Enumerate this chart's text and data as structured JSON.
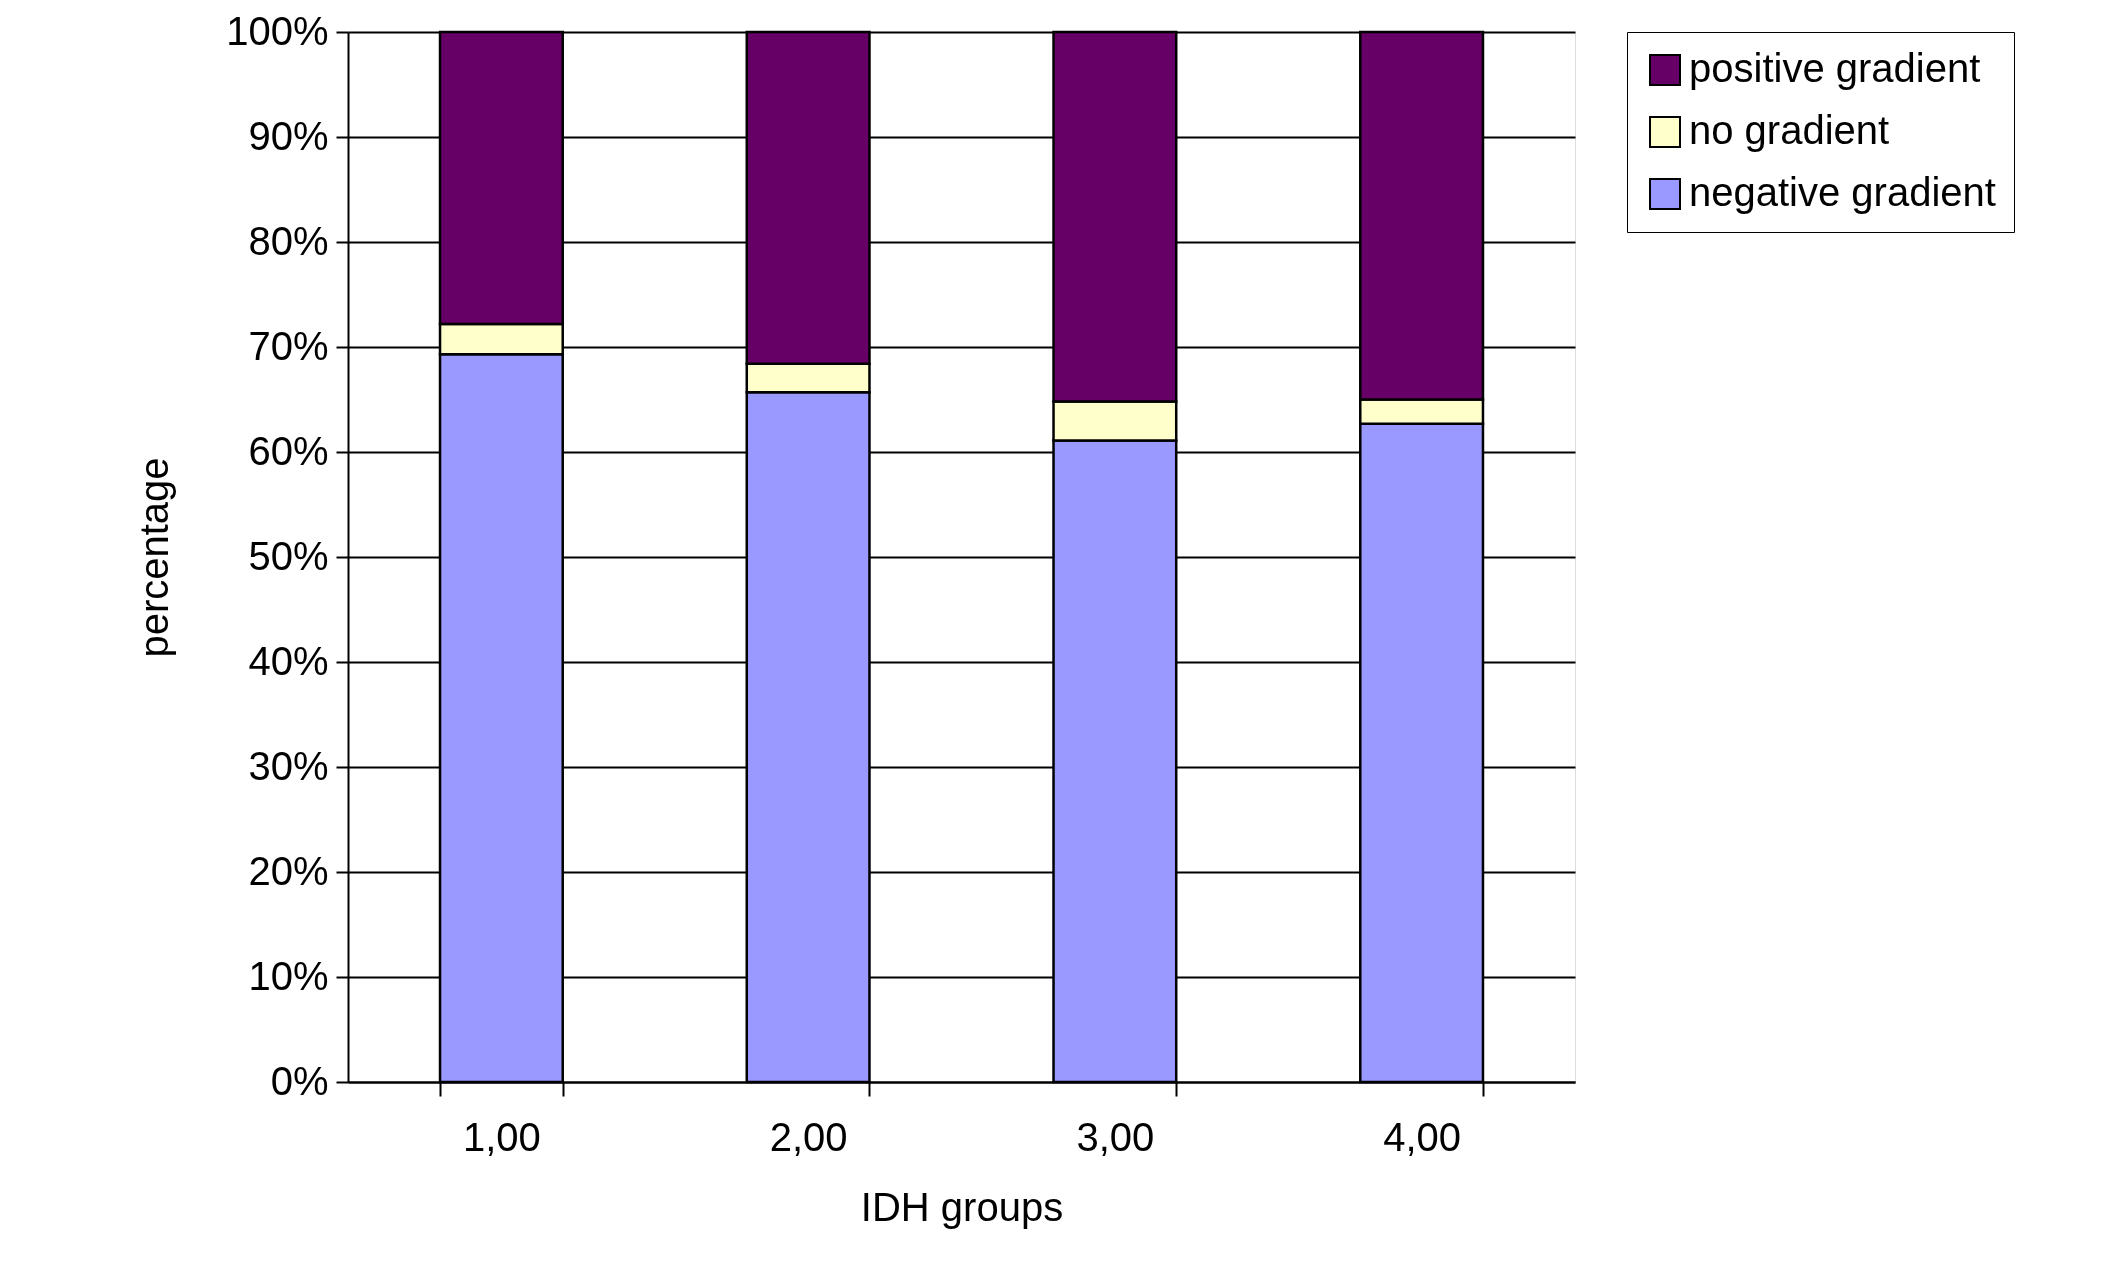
{
  "chart_data": {
    "type": "bar",
    "stacked": true,
    "xlabel": "IDH groups",
    "ylabel": "percentage",
    "categories": [
      "1,00",
      "2,00",
      "3,00",
      "4,00"
    ],
    "series": [
      {
        "name": "negative gradient",
        "color": "#9999ff",
        "values": [
          69.3,
          65.7,
          61.1,
          62.7
        ]
      },
      {
        "name": "no gradient",
        "color": "#ffffcc",
        "values": [
          2.9,
          2.7,
          3.7,
          2.3
        ]
      },
      {
        "name": "positive gradient",
        "color": "#660066",
        "values": [
          27.8,
          31.6,
          35.2,
          35.0
        ]
      }
    ],
    "ylim": [
      0,
      100
    ],
    "yticks": [
      {
        "value": 0,
        "label": "0%"
      },
      {
        "value": 10,
        "label": "10%"
      },
      {
        "value": 20,
        "label": "20%"
      },
      {
        "value": 30,
        "label": "30%"
      },
      {
        "value": 40,
        "label": "40%"
      },
      {
        "value": 50,
        "label": "50%"
      },
      {
        "value": 60,
        "label": "60%"
      },
      {
        "value": 70,
        "label": "70%"
      },
      {
        "value": 80,
        "label": "80%"
      },
      {
        "value": 90,
        "label": "90%"
      },
      {
        "value": 100,
        "label": "100%"
      }
    ],
    "grid": "y",
    "legend": "right"
  }
}
